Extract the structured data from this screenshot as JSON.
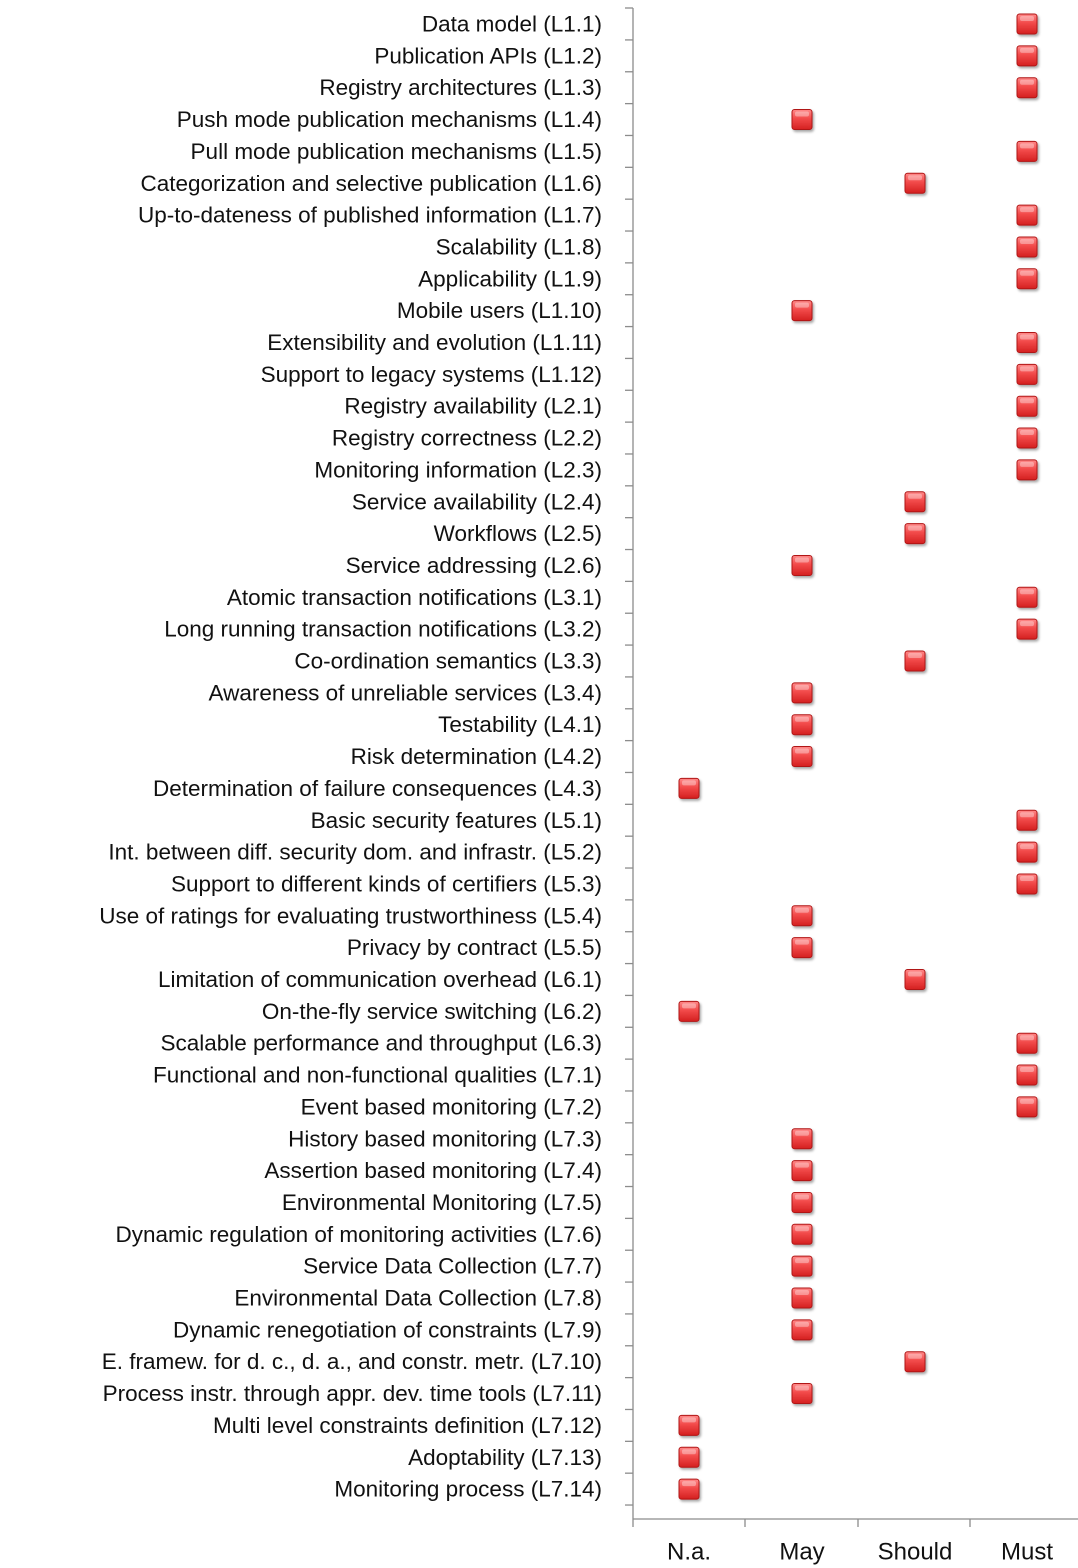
{
  "chart_data": {
    "type": "scatter",
    "title": "",
    "xlabel": "",
    "ylabel": "",
    "x_categories": [
      "N.a.",
      "May",
      "Should",
      "Must"
    ],
    "grid": false,
    "legend": "none",
    "marker_color": "#ee3b3b",
    "categories": [
      "Data model (L1.1)",
      "Publication APIs (L1.2)",
      "Registry architectures (L1.3)",
      "Push mode publication mechanisms (L1.4)",
      "Pull mode publication mechanisms (L1.5)",
      "Categorization and selective publication (L1.6)",
      "Up-to-dateness of published information (L1.7)",
      "Scalability (L1.8)",
      "Applicability (L1.9)",
      "Mobile users (L1.10)",
      "Extensibility and evolution (L1.11)",
      "Support to legacy systems (L1.12)",
      "Registry availability (L2.1)",
      "Registry correctness (L2.2)",
      "Monitoring information (L2.3)",
      "Service availability (L2.4)",
      "Workflows (L2.5)",
      "Service addressing (L2.6)",
      "Atomic transaction notifications (L3.1)",
      "Long running transaction notifications (L3.2)",
      "Co-ordination semantics (L3.3)",
      "Awareness of unreliable services (L3.4)",
      "Testability (L4.1)",
      "Risk determination (L4.2)",
      "Determination of failure consequences (L4.3)",
      "Basic security features (L5.1)",
      "Int. between diff. security dom. and infrastr. (L5.2)",
      "Support to different kinds of certifiers (L5.3)",
      "Use of ratings for evaluating trustworthiness (L5.4)",
      "Privacy by contract (L5.5)",
      "Limitation of communication overhead (L6.1)",
      "On-the-fly service switching (L6.2)",
      "Scalable performance and throughput (L6.3)",
      "Functional and non-functional qualities (L7.1)",
      "Event based monitoring (L7.2)",
      "History based monitoring (L7.3)",
      "Assertion based monitoring (L7.4)",
      "Environmental Monitoring (L7.5)",
      "Dynamic regulation of monitoring activities (L7.6)",
      "Service Data Collection (L7.7)",
      "Environmental Data Collection (L7.8)",
      "Dynamic renegotiation of constraints (L7.9)",
      "E. framew. for d. c., d. a., and constr. metr. (L7.10)",
      "Process instr. through appr. dev. time tools (L7.11)",
      "Multi level constraints definition (L7.12)",
      "Adoptability (L7.13)",
      "Monitoring process (L7.14)"
    ],
    "values": [
      "Must",
      "Must",
      "Must",
      "May",
      "Must",
      "Should",
      "Must",
      "Must",
      "Must",
      "May",
      "Must",
      "Must",
      "Must",
      "Must",
      "Must",
      "Should",
      "Should",
      "May",
      "Must",
      "Must",
      "Should",
      "May",
      "May",
      "May",
      "N.a.",
      "Must",
      "Must",
      "Must",
      "May",
      "May",
      "Should",
      "N.a.",
      "Must",
      "Must",
      "Must",
      "May",
      "May",
      "May",
      "May",
      "May",
      "May",
      "May",
      "Should",
      "May",
      "N.a.",
      "N.a.",
      "N.a."
    ]
  }
}
